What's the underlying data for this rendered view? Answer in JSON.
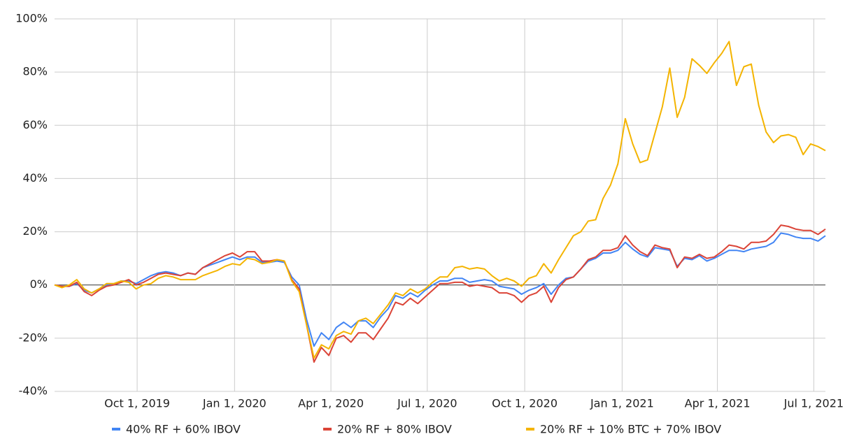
{
  "chart_data": {
    "type": "line",
    "x": [
      "2019-07-15",
      "2019-07-22",
      "2019-07-29",
      "2019-08-05",
      "2019-08-12",
      "2019-08-19",
      "2019-08-26",
      "2019-09-02",
      "2019-09-09",
      "2019-09-16",
      "2019-09-23",
      "2019-09-30",
      "2019-10-07",
      "2019-10-14",
      "2019-10-21",
      "2019-10-28",
      "2019-11-04",
      "2019-11-11",
      "2019-11-18",
      "2019-11-25",
      "2019-12-02",
      "2019-12-09",
      "2019-12-16",
      "2019-12-23",
      "2019-12-30",
      "2020-01-06",
      "2020-01-13",
      "2020-01-20",
      "2020-01-27",
      "2020-02-03",
      "2020-02-10",
      "2020-02-17",
      "2020-02-24",
      "2020-03-02",
      "2020-03-09",
      "2020-03-16",
      "2020-03-23",
      "2020-03-30",
      "2020-04-06",
      "2020-04-13",
      "2020-04-20",
      "2020-04-27",
      "2020-05-04",
      "2020-05-11",
      "2020-05-18",
      "2020-05-25",
      "2020-06-01",
      "2020-06-08",
      "2020-06-15",
      "2020-06-22",
      "2020-06-29",
      "2020-07-06",
      "2020-07-13",
      "2020-07-20",
      "2020-07-27",
      "2020-08-03",
      "2020-08-10",
      "2020-08-17",
      "2020-08-24",
      "2020-08-31",
      "2020-09-07",
      "2020-09-14",
      "2020-09-21",
      "2020-09-28",
      "2020-10-05",
      "2020-10-12",
      "2020-10-19",
      "2020-10-26",
      "2020-11-02",
      "2020-11-09",
      "2020-11-16",
      "2020-11-23",
      "2020-11-30",
      "2020-12-07",
      "2020-12-14",
      "2020-12-21",
      "2020-12-28",
      "2021-01-04",
      "2021-01-11",
      "2021-01-18",
      "2021-01-25",
      "2021-02-01",
      "2021-02-08",
      "2021-02-15",
      "2021-02-22",
      "2021-03-01",
      "2021-03-08",
      "2021-03-15",
      "2021-03-22",
      "2021-03-29",
      "2021-04-05",
      "2021-04-12",
      "2021-04-19",
      "2021-04-26",
      "2021-05-03",
      "2021-05-10",
      "2021-05-17",
      "2021-05-24",
      "2021-05-31",
      "2021-06-07",
      "2021-06-14",
      "2021-06-21",
      "2021-06-28",
      "2021-07-05",
      "2021-07-12"
    ],
    "series": [
      {
        "name": "40% RF + 60% IBOV",
        "color": "#4285f4",
        "values": [
          0,
          -0.5,
          -0.5,
          0.5,
          -2,
          -3,
          -1.5,
          0,
          0.5,
          1.5,
          1.5,
          0.5,
          2,
          3.5,
          4.5,
          5,
          4.5,
          3.5,
          4.5,
          4,
          6.5,
          7.5,
          8.5,
          9.5,
          10.5,
          9.5,
          10.5,
          10.5,
          8.5,
          8.5,
          9,
          8.5,
          3,
          0,
          -13,
          -23,
          -18,
          -20.5,
          -16,
          -14,
          -16,
          -13.5,
          -13.5,
          -16,
          -12,
          -9,
          -4,
          -5,
          -3,
          -4.5,
          -2,
          0,
          1.5,
          1.5,
          2.5,
          2.5,
          1,
          1.5,
          2,
          1.5,
          -0.5,
          -1,
          -1.5,
          -3.5,
          -2,
          -1,
          0.5,
          -3.5,
          0,
          2.5,
          3,
          6,
          9,
          10,
          12,
          12,
          13,
          16,
          13.5,
          11.5,
          10.5,
          14,
          13.5,
          13,
          7,
          10,
          9.5,
          11,
          9,
          10,
          11.5,
          13,
          13,
          12.5,
          13.5,
          14,
          14.5,
          16,
          19.5,
          19,
          18,
          17.5,
          17.5,
          16.5,
          18.5
        ]
      },
      {
        "name": "20% RF + 80% IBOV",
        "color": "#db4437",
        "values": [
          0,
          -0.5,
          -0.5,
          1,
          -2.5,
          -4,
          -2,
          -0.5,
          0,
          1,
          2,
          0,
          1,
          2.5,
          4,
          4.5,
          4,
          3.5,
          4.5,
          4,
          6.5,
          8,
          9.5,
          11,
          12,
          10.5,
          12.5,
          12.5,
          9,
          9,
          9.5,
          9,
          2,
          -1.5,
          -15,
          -29,
          -23.5,
          -26.5,
          -20,
          -19,
          -21.5,
          -18,
          -18,
          -20.5,
          -16.5,
          -12.5,
          -6.5,
          -7.5,
          -5,
          -7,
          -4.5,
          -2,
          0.5,
          0.5,
          1,
          1,
          -0.5,
          0,
          -0.5,
          -1,
          -3,
          -3,
          -4,
          -6.5,
          -4,
          -3,
          -0.5,
          -6.5,
          -1,
          2,
          3,
          6,
          9.5,
          10.5,
          13,
          13,
          14,
          18.5,
          15,
          12.5,
          11,
          15,
          14,
          13.5,
          6.5,
          10.5,
          10,
          11.5,
          10,
          10.5,
          12.5,
          15,
          14.5,
          13.5,
          16,
          16,
          16.5,
          19,
          22.5,
          22,
          21,
          20.5,
          20.5,
          19,
          21
        ]
      },
      {
        "name": "20% RF + 10% BTC + 70% IBOV",
        "color": "#f4b400",
        "values": [
          0,
          -1,
          0,
          2,
          -1.5,
          -3,
          -1.5,
          0.5,
          0.5,
          1.5,
          1,
          -1.5,
          0,
          0.5,
          2.5,
          3.5,
          3,
          2,
          2,
          2,
          3.5,
          4.5,
          5.5,
          7,
          8,
          7.5,
          10,
          9.5,
          8,
          8.5,
          9.5,
          9,
          1.5,
          -2.5,
          -15,
          -27.5,
          -22.5,
          -24,
          -19,
          -17.5,
          -18.5,
          -13.5,
          -12.5,
          -14.5,
          -11,
          -7.5,
          -3,
          -4,
          -1.5,
          -3,
          -1.5,
          1,
          3,
          3,
          6.5,
          7,
          6,
          6.5,
          6,
          3.5,
          1.5,
          2.5,
          1.5,
          -0.5,
          2.5,
          3.5,
          8,
          4.5,
          9.5,
          14,
          18.5,
          20,
          24,
          24.5,
          32.5,
          37.5,
          45.5,
          62.5,
          53,
          46,
          47,
          57,
          67,
          81.5,
          63,
          70.5,
          85,
          82.5,
          79.5,
          83.5,
          87,
          91.5,
          75,
          82,
          83,
          67.5,
          57.5,
          53.5,
          56,
          56.5,
          55.5,
          49,
          53,
          52,
          50.5
        ]
      }
    ],
    "xlim": [
      "2019-07-15",
      "2021-07-12"
    ],
    "xticks": [
      {
        "value": "2019-10-01",
        "label": "Oct 1, 2019"
      },
      {
        "value": "2020-01-01",
        "label": "Jan 1, 2020"
      },
      {
        "value": "2020-04-01",
        "label": "Apr 1, 2020"
      },
      {
        "value": "2020-07-01",
        "label": "Jul 1, 2020"
      },
      {
        "value": "2020-10-01",
        "label": "Oct 1, 2020"
      },
      {
        "value": "2021-01-01",
        "label": "Jan 1, 2021"
      },
      {
        "value": "2021-04-01",
        "label": "Apr 1, 2021"
      },
      {
        "value": "2021-07-01",
        "label": "Jul 1, 2021"
      }
    ],
    "ylim": [
      -40,
      100
    ],
    "yticks": [
      {
        "value": -40,
        "label": "-40%"
      },
      {
        "value": -20,
        "label": "-20%"
      },
      {
        "value": 0,
        "label": "0%"
      },
      {
        "value": 20,
        "label": "20%"
      },
      {
        "value": 40,
        "label": "40%"
      },
      {
        "value": 60,
        "label": "60%"
      },
      {
        "value": 80,
        "label": "80%"
      },
      {
        "value": 100,
        "label": "100%"
      }
    ],
    "grid": true,
    "legend": "bottom"
  }
}
